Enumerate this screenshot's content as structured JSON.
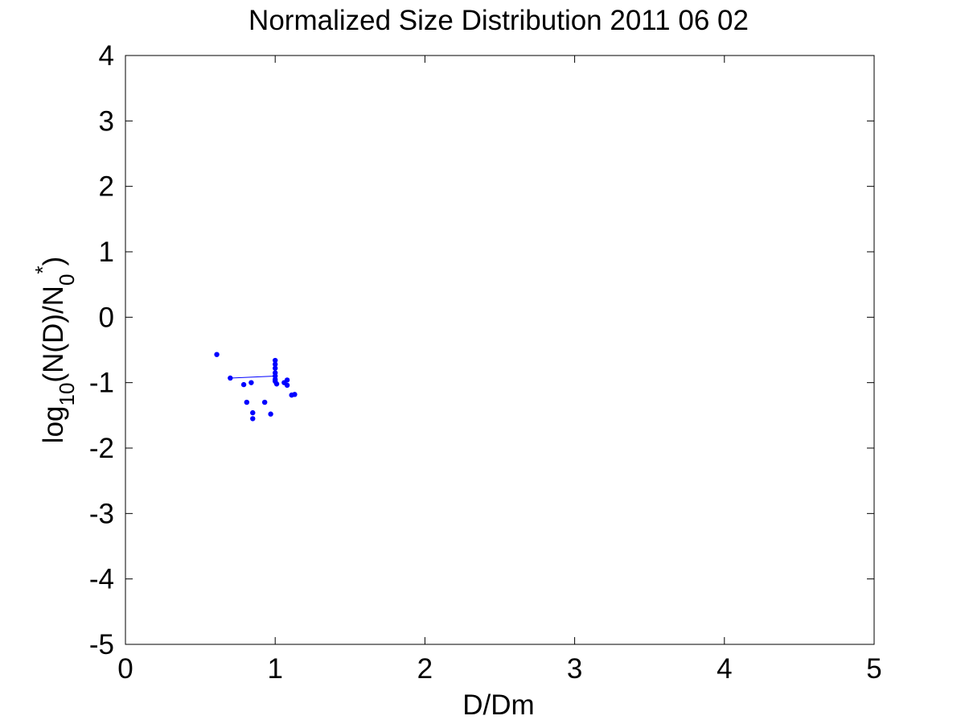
{
  "chart_data": {
    "type": "scatter",
    "title": "Normalized Size Distribution 2011 06 02",
    "xlabel": "D/Dm",
    "ylabel": {
      "base": "log",
      "sub1": "10",
      "mid": "(N(D)/N",
      "sub2": "0",
      "sup": "*",
      "end": ")"
    },
    "xlim": [
      0,
      5
    ],
    "ylim": [
      -5,
      4
    ],
    "xticks": [
      0,
      1,
      2,
      3,
      4,
      5
    ],
    "yticks": [
      -5,
      -4,
      -3,
      -2,
      -1,
      0,
      1,
      2,
      3,
      4
    ],
    "grid": false,
    "series": [
      {
        "marker_color": "#0000ff",
        "points": [
          [
            0.61,
            -0.57
          ],
          [
            0.7,
            -0.93
          ],
          [
            0.79,
            -1.03
          ],
          [
            0.81,
            -1.3
          ],
          [
            0.84,
            -1.0
          ],
          [
            0.85,
            -1.46
          ],
          [
            0.85,
            -1.55
          ],
          [
            0.93,
            -1.3
          ],
          [
            0.97,
            -1.48
          ],
          [
            1.0,
            -0.66
          ],
          [
            1.0,
            -0.72
          ],
          [
            1.0,
            -0.78
          ],
          [
            1.0,
            -0.85
          ],
          [
            1.0,
            -0.9
          ],
          [
            1.0,
            -0.95
          ],
          [
            1.0,
            -0.98
          ],
          [
            1.01,
            -1.02
          ],
          [
            1.06,
            -1.0
          ],
          [
            1.08,
            -0.96
          ],
          [
            1.08,
            -1.04
          ],
          [
            1.11,
            -1.19
          ],
          [
            1.13,
            -1.18
          ]
        ],
        "fit_line": [
          [
            0.7,
            -0.93
          ],
          [
            1.0,
            -0.9
          ]
        ]
      }
    ]
  }
}
